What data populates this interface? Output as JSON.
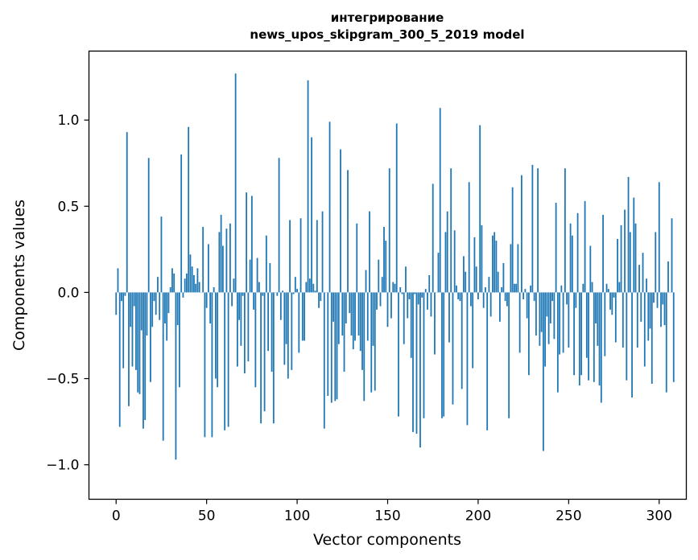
{
  "chart_data": {
    "type": "bar",
    "title_lines": [
      "интегрирование",
      "news_upos_skipgram_300_5_2019 model"
    ],
    "xlabel": "Vector components",
    "ylabel": "Components values",
    "xlim": [
      -15,
      315
    ],
    "ylim": [
      -1.2,
      1.4
    ],
    "xticks": [
      0,
      50,
      100,
      150,
      200,
      250,
      300
    ],
    "xtick_labels": [
      "0",
      "50",
      "100",
      "150",
      "200",
      "250",
      "300"
    ],
    "yticks": [
      -1.0,
      -0.5,
      0.0,
      0.5,
      1.0
    ],
    "ytick_labels": [
      "−1.0",
      "−0.5",
      "0.0",
      "0.5",
      "1.0"
    ],
    "bar_color": "#1f77b4",
    "grid": false,
    "legend": "none",
    "values": [
      -0.13,
      0.14,
      -0.78,
      -0.05,
      -0.44,
      -0.02,
      0.93,
      -0.66,
      -0.2,
      -0.43,
      -0.08,
      -0.45,
      -0.58,
      -0.59,
      -0.22,
      -0.79,
      -0.74,
      -0.25,
      0.78,
      -0.52,
      -0.2,
      -0.05,
      -0.13,
      0.09,
      -0.16,
      0.44,
      -0.86,
      -0.18,
      -0.28,
      -0.12,
      0.03,
      0.14,
      0.11,
      -0.97,
      -0.19,
      -0.55,
      0.8,
      -0.03,
      0.08,
      0.11,
      0.96,
      0.22,
      0.15,
      0.1,
      0.05,
      0.14,
      0.06,
      0.0,
      0.38,
      -0.84,
      -0.09,
      0.28,
      -0.18,
      -0.84,
      0.03,
      -0.5,
      -0.55,
      0.35,
      0.45,
      0.27,
      -0.8,
      0.37,
      -0.78,
      0.4,
      -0.08,
      0.08,
      1.27,
      -0.43,
      -0.16,
      -0.31,
      -0.02,
      -0.47,
      0.58,
      -0.4,
      0.19,
      0.56,
      -0.1,
      -0.55,
      0.2,
      0.06,
      -0.76,
      -0.02,
      -0.69,
      0.33,
      -0.34,
      0.17,
      -0.46,
      -0.76,
      0.0,
      -0.02,
      0.78,
      -0.16,
      0.01,
      -0.42,
      -0.3,
      -0.5,
      0.42,
      -0.45,
      -0.01,
      0.09,
      0.02,
      -0.35,
      0.43,
      -0.28,
      -0.28,
      0.06,
      1.23,
      0.08,
      0.9,
      0.05,
      0.01,
      0.42,
      -0.09,
      -0.05,
      0.47,
      -0.79,
      0.0,
      -0.6,
      0.99,
      -0.64,
      -0.17,
      -0.63,
      -0.62,
      -0.3,
      0.83,
      -0.25,
      -0.46,
      -0.18,
      0.71,
      -0.12,
      -0.25,
      -0.33,
      -0.28,
      0.4,
      -0.25,
      -0.34,
      -0.45,
      -0.63,
      0.13,
      -0.28,
      0.47,
      -0.58,
      -0.31,
      -0.57,
      -0.1,
      0.19,
      -0.08,
      0.09,
      0.38,
      0.3,
      -0.2,
      0.72,
      -0.15,
      0.06,
      0.05,
      0.98,
      -0.72,
      0.03,
      -0.01,
      -0.3,
      0.15,
      -0.15,
      -0.04,
      -0.38,
      -0.81,
      -0.01,
      -0.82,
      -0.07,
      -0.9,
      -0.03,
      -0.73,
      0.02,
      -0.1,
      0.1,
      -0.14,
      0.63,
      -0.36,
      0.0,
      0.23,
      1.07,
      -0.73,
      -0.72,
      0.35,
      0.47,
      -0.29,
      0.72,
      -0.65,
      0.36,
      0.04,
      -0.04,
      -0.05,
      -0.56,
      0.21,
      0.12,
      -0.77,
      0.64,
      -0.08,
      -0.44,
      0.32,
      0.15,
      -0.04,
      0.97,
      0.39,
      -0.09,
      0.03,
      -0.8,
      0.09,
      -0.14,
      0.33,
      0.35,
      0.3,
      0.12,
      -0.17,
      0.03,
      0.17,
      -0.05,
      -0.08,
      -0.73,
      0.28,
      0.61,
      0.05,
      0.05,
      0.28,
      -0.35,
      0.68,
      -0.04,
      0.02,
      -0.15,
      -0.48,
      0.04,
      0.74,
      -0.05,
      -0.25,
      0.72,
      -0.31,
      -0.23,
      -0.92,
      -0.43,
      -0.14,
      -0.3,
      -0.18,
      -0.05,
      -0.27,
      0.52,
      -0.58,
      -0.36,
      0.04,
      -0.35,
      0.72,
      -0.07,
      -0.32,
      0.4,
      0.33,
      -0.48,
      -0.09,
      0.46,
      -0.54,
      -0.48,
      0.05,
      0.53,
      -0.38,
      -0.51,
      0.27,
      0.06,
      -0.52,
      -0.18,
      -0.31,
      -0.54,
      -0.64,
      0.45,
      -0.37,
      0.05,
      0.02,
      -0.1,
      -0.13,
      -0.03,
      -0.29,
      0.31,
      0.06,
      0.39,
      -0.32,
      0.48,
      -0.51,
      0.67,
      0.35,
      -0.61,
      0.55,
      0.4,
      -0.32,
      0.16,
      -0.17,
      0.23,
      -0.43,
      0.08,
      -0.28,
      -0.21,
      -0.53,
      -0.06,
      0.35,
      -0.09,
      0.64,
      -0.2,
      -0.07,
      -0.19,
      -0.58,
      0.18,
      0.0,
      0.43,
      -0.52
    ]
  }
}
